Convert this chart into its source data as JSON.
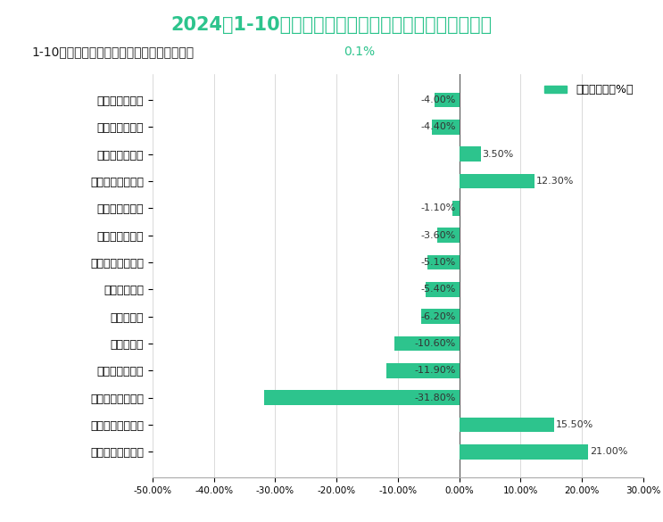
{
  "title": "2024年1-10月阿坝州规模以上工业行业增加值增长情况",
  "subtitle_main": "1-10月，含园区规模以上工业增加值同比下降",
  "subtitle_highlight": "0.1%",
  "legend_label": "增加值增长（%）",
  "categories": [
    "非金属矿采选业",
    "农副食品加工业",
    "通用设备制造业",
    "非金属矿物制品业",
    "电子设备制造业",
    "化学制品制造业",
    "电热力生产供应业",
    "酒饮料精制茶",
    "医药制造业",
    "食品制造业",
    "黑色金属加工业",
    "黑色金属矿采选业",
    "文教工美体育娱乐",
    "有色金属矿采选业"
  ],
  "values": [
    -4.0,
    -4.4,
    3.5,
    12.3,
    -1.1,
    -3.6,
    -5.1,
    -5.4,
    -6.2,
    -10.6,
    -11.9,
    -31.8,
    15.5,
    21.0
  ],
  "bar_color": "#2dc48d",
  "title_color": "#2dc48d",
  "title_fontsize": 15,
  "subtitle_fontsize": 10,
  "subtitle_box_color": "#d9d9d9",
  "highlight_color": "#2dc48d",
  "background_color": "#ffffff",
  "xlim": [
    -50,
    30
  ],
  "xtick_values": [
    -50,
    -40,
    -30,
    -20,
    -10,
    0,
    10,
    20,
    30
  ],
  "watermark_color": "#b8cfe0"
}
